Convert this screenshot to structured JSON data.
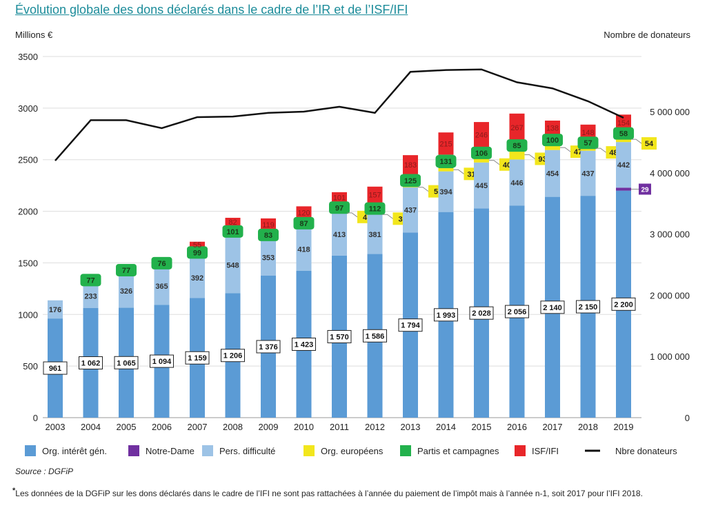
{
  "chart_data": {
    "type": "bar",
    "title": "Évolution globale des dons déclarés dans le cadre de l’IR et de l’ISF/IFI",
    "ylabel": "Millions €",
    "y2label": "Nombre de donateurs",
    "ylim": [
      0,
      3500
    ],
    "yticks": [
      "0",
      "500",
      "1000",
      "1500",
      "2000",
      "2500",
      "3000",
      "3500"
    ],
    "y2lim": [
      0,
      5900000
    ],
    "y2ticks": [
      "0",
      "1 000 000",
      "2 000 000",
      "3 000 000",
      "4 000 000",
      "5 000 000"
    ],
    "grid": true,
    "legend_position": "bottom",
    "categories": [
      "2003",
      "2004",
      "2005",
      "2006",
      "2007",
      "2008",
      "2009",
      "2010",
      "2011",
      "2012",
      "2013",
      "2014",
      "2015",
      "2016",
      "2017",
      "2018",
      "2019"
    ],
    "series": [
      {
        "name": "Org. intérêt gén.",
        "color": "#5b9bd5",
        "values": [
          961,
          1062,
          1065,
          1094,
          1159,
          1206,
          1376,
          1423,
          1570,
          1586,
          1794,
          1993,
          2028,
          2056,
          2140,
          2150,
          2200
        ],
        "labels": [
          "961",
          "1 062",
          "1 065",
          "1 094",
          "1 159",
          "1 206",
          "1 376",
          "1 423",
          "1 570",
          "1 586",
          "1 794",
          "1 993",
          "2 028",
          "2 056",
          "2 140",
          "2 150",
          "2 200"
        ]
      },
      {
        "name": "Notre-Dame",
        "color": "#7030a0",
        "values": [
          0,
          0,
          0,
          0,
          0,
          0,
          0,
          0,
          0,
          0,
          0,
          0,
          0,
          0,
          0,
          0,
          29
        ]
      },
      {
        "name": "Pers. difficulté",
        "color": "#9dc3e6",
        "values": [
          176,
          233,
          326,
          365,
          392,
          548,
          353,
          418,
          413,
          381,
          437,
          394,
          445,
          446,
          454,
          437,
          442
        ]
      },
      {
        "name": "Org. européens",
        "color": "#f2e61c",
        "values": [
          0,
          0,
          0,
          0,
          0,
          0,
          0,
          0,
          4,
          3,
          5,
          31,
          40,
          93,
          47,
          48,
          54
        ]
      },
      {
        "name": "Partis et campagnes",
        "color": "#22b14c",
        "values": [
          0,
          77,
          77,
          76,
          99,
          101,
          83,
          87,
          97,
          112,
          125,
          131,
          106,
          85,
          100,
          57,
          58
        ]
      },
      {
        "name": "ISF/IFI",
        "color": "#e8262a",
        "values": [
          0,
          0,
          0,
          0,
          55,
          82,
          119,
          120,
          101,
          157,
          183,
          215,
          246,
          267,
          138,
          148,
          154
        ]
      },
      {
        "name": "Nbre donateurs",
        "type": "line",
        "axis": "right",
        "color": "#111111",
        "values": [
          4200000,
          4860000,
          4860000,
          4730000,
          4910000,
          4920000,
          4980000,
          5000000,
          5080000,
          4980000,
          5650000,
          5680000,
          5690000,
          5480000,
          5380000,
          5170000,
          4900000
        ]
      }
    ]
  },
  "source": "Source : DGFiP",
  "footnote_mark": "*",
  "footnote": "Les données de la DGFiP sur les dons déclarés dans le cadre de l’IFI ne sont pas rattachées à l’année du paiement de l’impôt mais à l’année n-1, soit 2017 pour l’IFI 2018."
}
